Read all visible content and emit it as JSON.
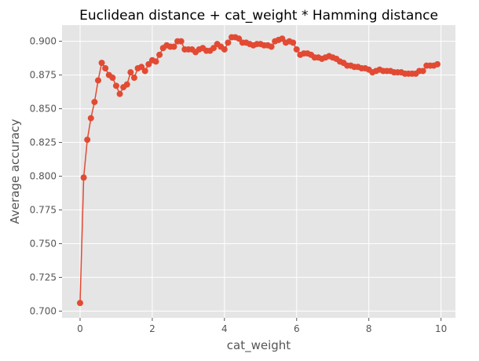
{
  "chart_data": {
    "type": "line",
    "title": "Euclidean distance + cat_weight * Hamming distance",
    "xlabel": "cat_weight",
    "ylabel": "Average accuracy",
    "xlim": [
      -0.5,
      10.4
    ],
    "ylim": [
      0.695,
      0.912
    ],
    "xticks": [
      0,
      2,
      4,
      6,
      8,
      10
    ],
    "xtick_labels": [
      "0",
      "2",
      "4",
      "6",
      "8",
      "10"
    ],
    "yticks": [
      0.7,
      0.725,
      0.75,
      0.775,
      0.8,
      0.825,
      0.85,
      0.875,
      0.9
    ],
    "ytick_labels": [
      "0.700",
      "0.725",
      "0.750",
      "0.775",
      "0.800",
      "0.825",
      "0.850",
      "0.875",
      "0.900"
    ],
    "grid": true,
    "style": "ggplot",
    "colors": {
      "series": "#E24A33",
      "panel": "#E5E5E5",
      "grid": "#FFFFFF"
    },
    "series": [
      {
        "x": [
          0.0,
          0.1,
          0.2,
          0.3,
          0.4,
          0.5,
          0.6,
          0.7,
          0.8,
          0.9,
          1.0,
          1.1,
          1.2,
          1.3,
          1.4,
          1.5,
          1.6,
          1.7,
          1.8,
          1.9,
          2.0,
          2.1,
          2.2,
          2.3,
          2.4,
          2.5,
          2.6,
          2.7,
          2.8,
          2.9,
          3.0,
          3.1,
          3.2,
          3.3,
          3.4,
          3.5,
          3.6,
          3.7,
          3.8,
          3.9,
          4.0,
          4.1,
          4.2,
          4.3,
          4.4,
          4.5,
          4.6,
          4.7,
          4.8,
          4.9,
          5.0,
          5.1,
          5.2,
          5.3,
          5.4,
          5.5,
          5.6,
          5.7,
          5.8,
          5.9,
          6.0,
          6.1,
          6.2,
          6.3,
          6.4,
          6.5,
          6.6,
          6.7,
          6.8,
          6.9,
          7.0,
          7.1,
          7.2,
          7.3,
          7.4,
          7.5,
          7.6,
          7.7,
          7.8,
          7.9,
          8.0,
          8.1,
          8.2,
          8.3,
          8.4,
          8.5,
          8.6,
          8.7,
          8.8,
          8.9,
          9.0,
          9.1,
          9.2,
          9.3,
          9.4,
          9.5,
          9.6,
          9.7,
          9.8,
          9.9
        ],
        "y": [
          0.706,
          0.799,
          0.827,
          0.843,
          0.855,
          0.871,
          0.884,
          0.88,
          0.875,
          0.873,
          0.867,
          0.861,
          0.866,
          0.868,
          0.877,
          0.873,
          0.88,
          0.881,
          0.878,
          0.883,
          0.886,
          0.885,
          0.89,
          0.895,
          0.897,
          0.896,
          0.896,
          0.9,
          0.9,
          0.894,
          0.894,
          0.894,
          0.892,
          0.894,
          0.895,
          0.893,
          0.893,
          0.895,
          0.898,
          0.896,
          0.894,
          0.899,
          0.903,
          0.903,
          0.902,
          0.899,
          0.899,
          0.898,
          0.897,
          0.898,
          0.898,
          0.897,
          0.897,
          0.896,
          0.9,
          0.901,
          0.902,
          0.899,
          0.9,
          0.899,
          0.894,
          0.89,
          0.891,
          0.891,
          0.89,
          0.888,
          0.888,
          0.887,
          0.888,
          0.889,
          0.888,
          0.887,
          0.885,
          0.884,
          0.882,
          0.882,
          0.881,
          0.881,
          0.88,
          0.88,
          0.879,
          0.877,
          0.878,
          0.879,
          0.878,
          0.878,
          0.878,
          0.877,
          0.877,
          0.877,
          0.876,
          0.876,
          0.876,
          0.876,
          0.878,
          0.878,
          0.882,
          0.882,
          0.882,
          0.883
        ]
      }
    ]
  }
}
